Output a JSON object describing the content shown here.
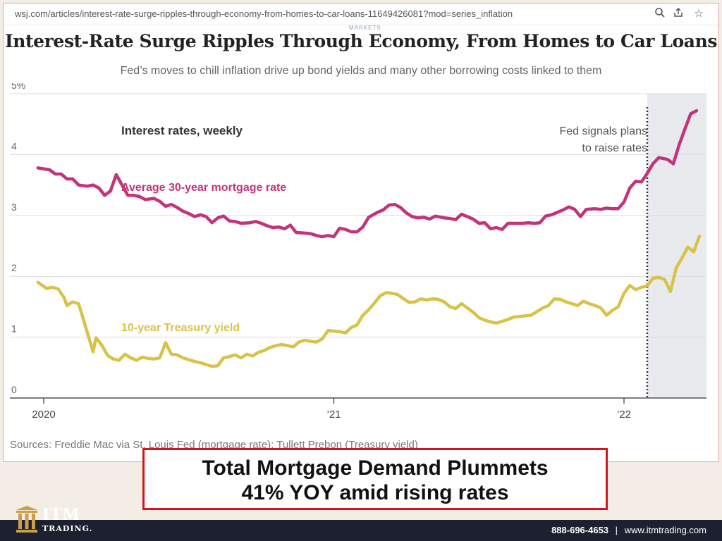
{
  "browser": {
    "url": "wsj.com/articles/interest-rate-surge-ripples-through-economy-from-homes-to-car-loans-11649426081?mod=series_inflation",
    "icons": [
      "zoom-icon",
      "share-icon",
      "bookmark-star-icon"
    ]
  },
  "article": {
    "section": "MARKETS",
    "headline": "Interest-Rate Surge Ripples Through Economy, From Homes to Car Loans",
    "dek": "Fed’s moves to chill inflation drive up bond yields and many other borrowing costs linked to them",
    "sources": "Sources: Freddie Mac via St. Louis Fed (mortgage rate); Tullett Prebon (Treasury yield)"
  },
  "chart_data": {
    "type": "line",
    "title": "Interest rates, weekly",
    "ylim": [
      0,
      5
    ],
    "y_ticks": [
      "0",
      "1",
      "2",
      "3",
      "4",
      "5%"
    ],
    "x_ticks": [
      {
        "x": 2020.0,
        "label": "2020"
      },
      {
        "x": 2021.0,
        "label": "’21"
      },
      {
        "x": 2022.0,
        "label": "’22"
      }
    ],
    "xlim": [
      2019.97,
      2022.3
    ],
    "grid": "horizontal",
    "annotation": {
      "x": 2022.08,
      "text": [
        "Fed signals plans",
        "to raise rates"
      ]
    },
    "series": [
      {
        "name": "Average 30-year mortgage rate",
        "color": "#c2337a",
        "points": [
          [
            2019.98,
            3.78
          ],
          [
            2020.02,
            3.75
          ],
          [
            2020.04,
            3.68
          ],
          [
            2020.06,
            3.68
          ],
          [
            2020.08,
            3.6
          ],
          [
            2020.1,
            3.6
          ],
          [
            2020.12,
            3.5
          ],
          [
            2020.15,
            3.48
          ],
          [
            2020.17,
            3.5
          ],
          [
            2020.19,
            3.45
          ],
          [
            2020.21,
            3.33
          ],
          [
            2020.23,
            3.4
          ],
          [
            2020.25,
            3.67
          ],
          [
            2020.27,
            3.5
          ],
          [
            2020.29,
            3.33
          ],
          [
            2020.31,
            3.33
          ],
          [
            2020.33,
            3.31
          ],
          [
            2020.35,
            3.26
          ],
          [
            2020.38,
            3.28
          ],
          [
            2020.4,
            3.23
          ],
          [
            2020.42,
            3.15
          ],
          [
            2020.44,
            3.18
          ],
          [
            2020.46,
            3.13
          ],
          [
            2020.48,
            3.07
          ],
          [
            2020.5,
            3.03
          ],
          [
            2020.52,
            2.98
          ],
          [
            2020.54,
            3.01
          ],
          [
            2020.56,
            2.98
          ],
          [
            2020.58,
            2.88
          ],
          [
            2020.6,
            2.96
          ],
          [
            2020.62,
            2.99
          ],
          [
            2020.64,
            2.91
          ],
          [
            2020.66,
            2.9
          ],
          [
            2020.68,
            2.87
          ],
          [
            2020.71,
            2.88
          ],
          [
            2020.73,
            2.9
          ],
          [
            2020.75,
            2.87
          ],
          [
            2020.77,
            2.83
          ],
          [
            2020.79,
            2.8
          ],
          [
            2020.81,
            2.81
          ],
          [
            2020.83,
            2.78
          ],
          [
            2020.85,
            2.84
          ],
          [
            2020.87,
            2.72
          ],
          [
            2020.9,
            2.71
          ],
          [
            2020.92,
            2.7
          ],
          [
            2020.94,
            2.67
          ],
          [
            2020.96,
            2.65
          ],
          [
            2020.98,
            2.67
          ],
          [
            2021.0,
            2.65
          ],
          [
            2021.02,
            2.79
          ],
          [
            2021.04,
            2.77
          ],
          [
            2021.06,
            2.73
          ],
          [
            2021.08,
            2.73
          ],
          [
            2021.1,
            2.81
          ],
          [
            2021.12,
            2.97
          ],
          [
            2021.15,
            3.05
          ],
          [
            2021.17,
            3.09
          ],
          [
            2021.19,
            3.17
          ],
          [
            2021.21,
            3.18
          ],
          [
            2021.23,
            3.13
          ],
          [
            2021.25,
            3.04
          ],
          [
            2021.27,
            2.98
          ],
          [
            2021.29,
            2.96
          ],
          [
            2021.31,
            2.97
          ],
          [
            2021.33,
            2.94
          ],
          [
            2021.35,
            2.99
          ],
          [
            2021.38,
            2.96
          ],
          [
            2021.4,
            2.95
          ],
          [
            2021.42,
            2.93
          ],
          [
            2021.44,
            3.02
          ],
          [
            2021.46,
            2.98
          ],
          [
            2021.48,
            2.94
          ],
          [
            2021.5,
            2.87
          ],
          [
            2021.52,
            2.88
          ],
          [
            2021.54,
            2.78
          ],
          [
            2021.56,
            2.8
          ],
          [
            2021.58,
            2.77
          ],
          [
            2021.6,
            2.87
          ],
          [
            2021.62,
            2.87
          ],
          [
            2021.65,
            2.87
          ],
          [
            2021.67,
            2.88
          ],
          [
            2021.69,
            2.87
          ],
          [
            2021.71,
            2.88
          ],
          [
            2021.73,
            2.99
          ],
          [
            2021.75,
            3.01
          ],
          [
            2021.77,
            3.05
          ],
          [
            2021.79,
            3.09
          ],
          [
            2021.81,
            3.14
          ],
          [
            2021.83,
            3.1
          ],
          [
            2021.85,
            2.98
          ],
          [
            2021.87,
            3.1
          ],
          [
            2021.9,
            3.11
          ],
          [
            2021.92,
            3.1
          ],
          [
            2021.94,
            3.12
          ],
          [
            2021.96,
            3.11
          ],
          [
            2021.98,
            3.11
          ],
          [
            2022.0,
            3.22
          ],
          [
            2022.02,
            3.45
          ],
          [
            2022.04,
            3.56
          ],
          [
            2022.06,
            3.55
          ],
          [
            2022.08,
            3.69
          ],
          [
            2022.1,
            3.85
          ],
          [
            2022.12,
            3.95
          ],
          [
            2022.15,
            3.92
          ],
          [
            2022.17,
            3.85
          ],
          [
            2022.19,
            4.16
          ],
          [
            2022.21,
            4.42
          ],
          [
            2022.23,
            4.67
          ],
          [
            2022.25,
            4.72
          ]
        ]
      },
      {
        "name": "10-year Treasury yield",
        "color": "#d9c24a",
        "points": [
          [
            2019.98,
            1.9
          ],
          [
            2020.01,
            1.8
          ],
          [
            2020.03,
            1.82
          ],
          [
            2020.05,
            1.79
          ],
          [
            2020.07,
            1.65
          ],
          [
            2020.08,
            1.52
          ],
          [
            2020.1,
            1.58
          ],
          [
            2020.12,
            1.55
          ],
          [
            2020.13,
            1.4
          ],
          [
            2020.15,
            1.08
          ],
          [
            2020.17,
            0.76
          ],
          [
            2020.18,
            0.99
          ],
          [
            2020.2,
            0.87
          ],
          [
            2020.22,
            0.7
          ],
          [
            2020.24,
            0.64
          ],
          [
            2020.26,
            0.62
          ],
          [
            2020.28,
            0.72
          ],
          [
            2020.3,
            0.66
          ],
          [
            2020.32,
            0.62
          ],
          [
            2020.34,
            0.67
          ],
          [
            2020.36,
            0.65
          ],
          [
            2020.38,
            0.64
          ],
          [
            2020.4,
            0.66
          ],
          [
            2020.42,
            0.91
          ],
          [
            2020.44,
            0.72
          ],
          [
            2020.46,
            0.71
          ],
          [
            2020.48,
            0.66
          ],
          [
            2020.5,
            0.63
          ],
          [
            2020.52,
            0.6
          ],
          [
            2020.54,
            0.58
          ],
          [
            2020.56,
            0.55
          ],
          [
            2020.58,
            0.52
          ],
          [
            2020.6,
            0.53
          ],
          [
            2020.62,
            0.66
          ],
          [
            2020.64,
            0.68
          ],
          [
            2020.66,
            0.71
          ],
          [
            2020.68,
            0.66
          ],
          [
            2020.7,
            0.72
          ],
          [
            2020.72,
            0.69
          ],
          [
            2020.74,
            0.75
          ],
          [
            2020.76,
            0.78
          ],
          [
            2020.78,
            0.83
          ],
          [
            2020.8,
            0.86
          ],
          [
            2020.82,
            0.88
          ],
          [
            2020.84,
            0.86
          ],
          [
            2020.86,
            0.84
          ],
          [
            2020.88,
            0.92
          ],
          [
            2020.9,
            0.95
          ],
          [
            2020.92,
            0.93
          ],
          [
            2020.94,
            0.92
          ],
          [
            2020.96,
            0.97
          ],
          [
            2020.98,
            1.11
          ],
          [
            2021.0,
            1.1
          ],
          [
            2021.02,
            1.09
          ],
          [
            2021.04,
            1.07
          ],
          [
            2021.06,
            1.16
          ],
          [
            2021.08,
            1.2
          ],
          [
            2021.1,
            1.36
          ],
          [
            2021.12,
            1.45
          ],
          [
            2021.14,
            1.56
          ],
          [
            2021.16,
            1.68
          ],
          [
            2021.18,
            1.73
          ],
          [
            2021.2,
            1.72
          ],
          [
            2021.22,
            1.7
          ],
          [
            2021.24,
            1.63
          ],
          [
            2021.26,
            1.57
          ],
          [
            2021.28,
            1.58
          ],
          [
            2021.3,
            1.63
          ],
          [
            2021.32,
            1.61
          ],
          [
            2021.34,
            1.63
          ],
          [
            2021.36,
            1.62
          ],
          [
            2021.38,
            1.58
          ],
          [
            2021.4,
            1.5
          ],
          [
            2021.42,
            1.47
          ],
          [
            2021.44,
            1.55
          ],
          [
            2021.46,
            1.48
          ],
          [
            2021.48,
            1.41
          ],
          [
            2021.5,
            1.32
          ],
          [
            2021.52,
            1.28
          ],
          [
            2021.54,
            1.25
          ],
          [
            2021.56,
            1.23
          ],
          [
            2021.58,
            1.26
          ],
          [
            2021.6,
            1.29
          ],
          [
            2021.62,
            1.33
          ],
          [
            2021.64,
            1.34
          ],
          [
            2021.66,
            1.35
          ],
          [
            2021.68,
            1.36
          ],
          [
            2021.7,
            1.42
          ],
          [
            2021.72,
            1.48
          ],
          [
            2021.74,
            1.52
          ],
          [
            2021.76,
            1.63
          ],
          [
            2021.78,
            1.62
          ],
          [
            2021.8,
            1.58
          ],
          [
            2021.82,
            1.55
          ],
          [
            2021.84,
            1.52
          ],
          [
            2021.86,
            1.59
          ],
          [
            2021.88,
            1.55
          ],
          [
            2021.9,
            1.52
          ],
          [
            2021.92,
            1.48
          ],
          [
            2021.94,
            1.36
          ],
          [
            2021.96,
            1.44
          ],
          [
            2021.98,
            1.5
          ],
          [
            2022.0,
            1.72
          ],
          [
            2022.02,
            1.85
          ],
          [
            2022.04,
            1.78
          ],
          [
            2022.06,
            1.82
          ],
          [
            2022.08,
            1.84
          ],
          [
            2022.1,
            1.97
          ],
          [
            2022.12,
            1.98
          ],
          [
            2022.14,
            1.95
          ],
          [
            2022.16,
            1.75
          ],
          [
            2022.18,
            2.14
          ],
          [
            2022.2,
            2.3
          ],
          [
            2022.22,
            2.48
          ],
          [
            2022.24,
            2.4
          ],
          [
            2022.26,
            2.66
          ]
        ]
      }
    ]
  },
  "banner": {
    "line1": "Total Mortgage Demand Plummets",
    "line2": "41% YOY amid rising rates"
  },
  "brand": {
    "name": "ITM",
    "sub": "TRADING.",
    "phone": "888-696-4653",
    "separator": "|",
    "site": "www.itmtrading.com"
  }
}
